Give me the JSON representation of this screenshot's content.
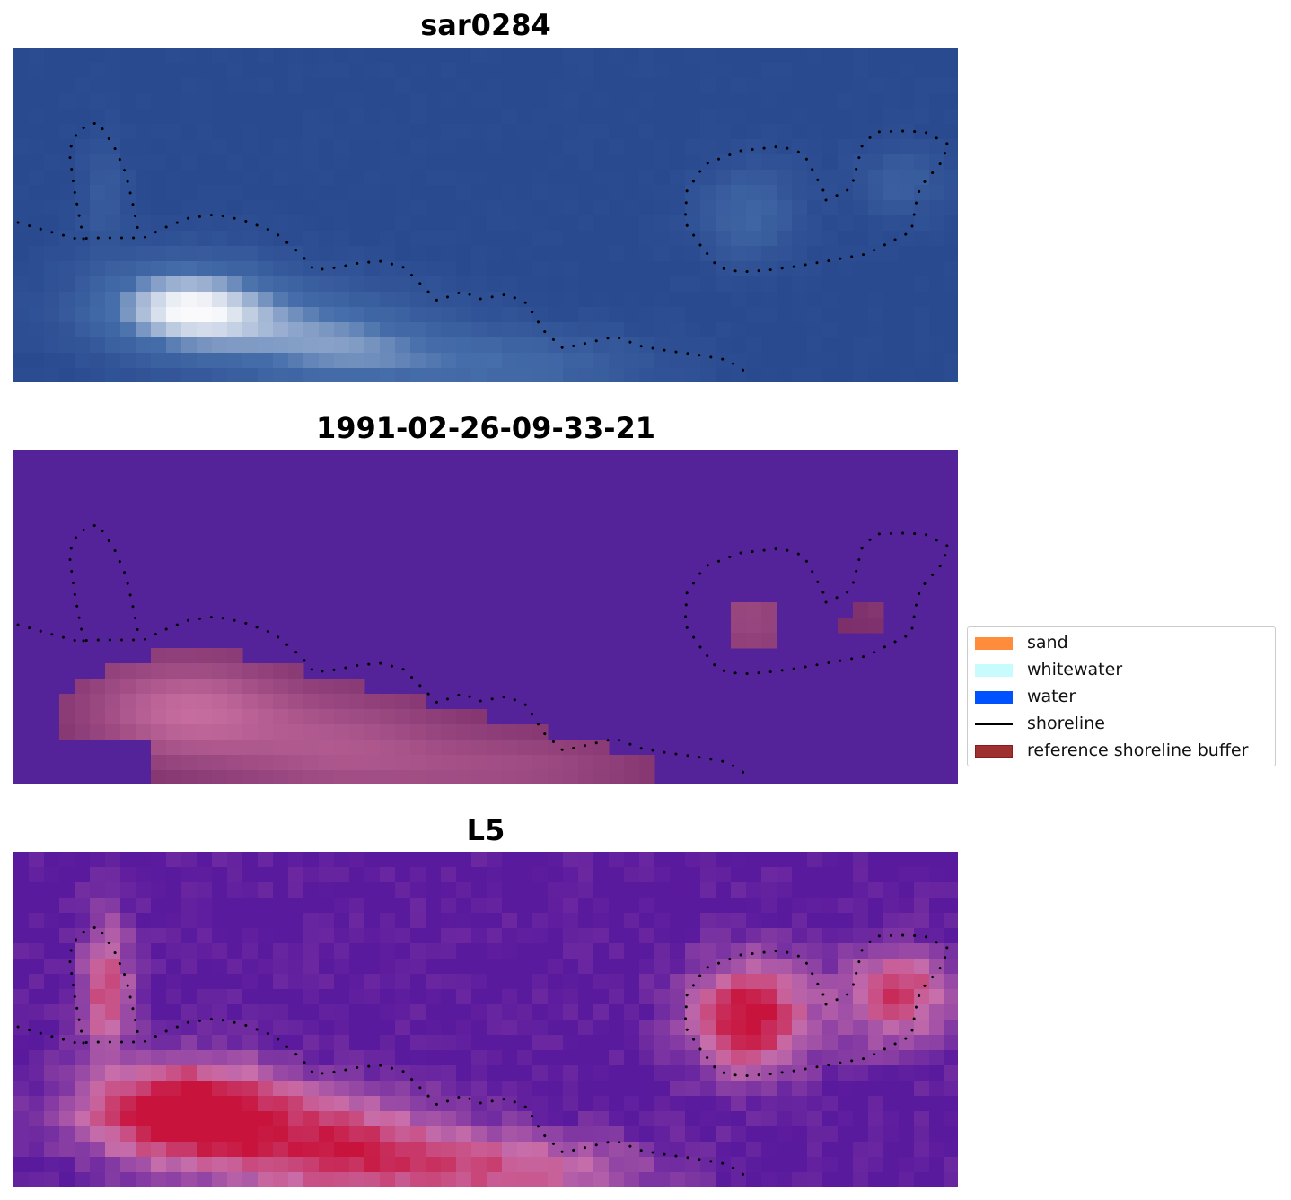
{
  "panels": [
    {
      "title": "sar0284",
      "style": "rgb"
    },
    {
      "title": "1991-02-26-09-33-21",
      "style": "classified"
    },
    {
      "title": "L5",
      "style": "index"
    }
  ],
  "legend": {
    "items": [
      {
        "label": "sand",
        "kind": "patch",
        "color": "#ff8c3a"
      },
      {
        "label": "whitewater",
        "kind": "patch",
        "color": "#c8fcfc"
      },
      {
        "label": "water",
        "kind": "patch",
        "color": "#0051ff"
      },
      {
        "label": "shoreline",
        "kind": "line",
        "color": "#000000"
      },
      {
        "label": "reference shoreline buffer",
        "kind": "patch",
        "color": "#9e3030",
        "edge": "#8b1a1a"
      }
    ]
  },
  "colors": {
    "rgb_base": "#2a4a90",
    "classified_background": "#54239a",
    "buffer_fill": "#7a2d6a",
    "index_low": "#5a1a9e",
    "index_high": "#c8143c",
    "shoreline_dots": "#000000"
  }
}
